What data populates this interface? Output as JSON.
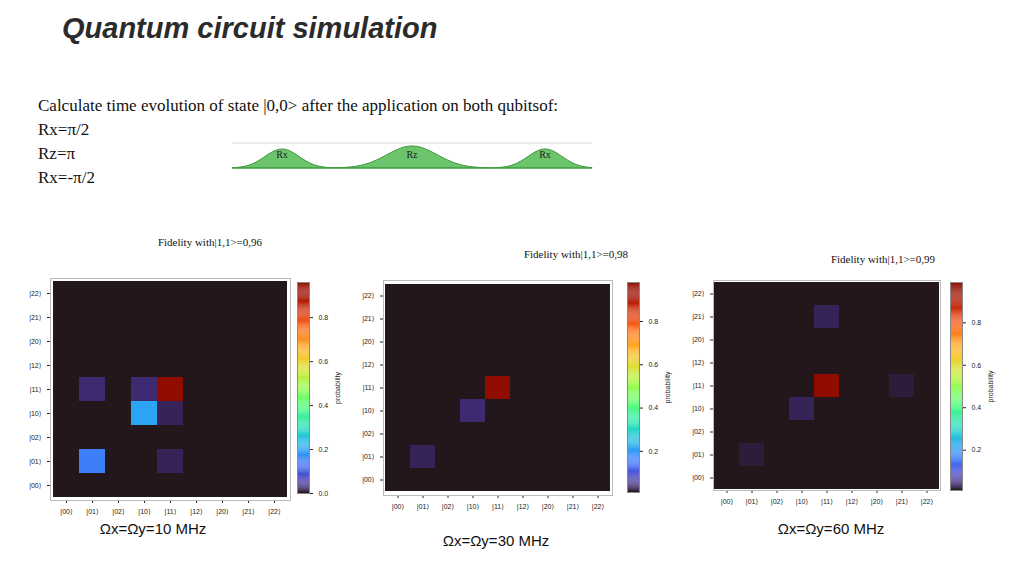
{
  "title": "Quantum circuit simulation",
  "text": {
    "intro": "Calculate time evolution of state |0,0> after the application on both qubitsof:",
    "lines": [
      "Rx=π/2",
      "Rz=π",
      "Rx=-π/2"
    ]
  },
  "pulse_labels": [
    "Rx",
    "Rz",
    "Rx"
  ],
  "chart_data": [
    {
      "type": "heatmap",
      "title": "Fidelity with|1,1>=0,96",
      "caption": "Ωx=Ωy=10 MHz",
      "color": "turbo",
      "categories": [
        "|00⟩",
        "|01⟩",
        "|02⟩",
        "|10⟩",
        "|11⟩",
        "|12⟩",
        "|20⟩",
        "|21⟩",
        "|22⟩"
      ],
      "cells": [
        [
          0,
          0,
          0,
          0,
          0,
          0,
          0,
          0,
          0
        ],
        [
          0,
          0.15,
          0,
          0,
          0.02,
          0,
          0,
          0,
          0
        ],
        [
          0,
          0,
          0,
          0,
          0,
          0,
          0,
          0,
          0
        ],
        [
          0,
          0,
          0,
          0.2,
          0.02,
          0,
          0,
          0,
          0
        ],
        [
          0,
          0.03,
          0,
          0.03,
          0.96,
          0,
          0,
          0,
          0
        ],
        [
          0,
          0,
          0,
          0,
          0,
          0,
          0,
          0,
          0
        ],
        [
          0,
          0,
          0,
          0,
          0,
          0,
          0,
          0,
          0
        ],
        [
          0,
          0,
          0,
          0,
          0,
          0,
          0,
          0,
          0
        ],
        [
          0,
          0,
          0,
          0,
          0,
          0,
          0,
          0,
          0
        ]
      ],
      "colorbar": {
        "label": "probability",
        "range": [
          0,
          0.96
        ],
        "ticks": [
          {
            "value": 0,
            "label": "0.0"
          },
          0.2,
          0.4,
          0.6,
          0.8
        ]
      }
    },
    {
      "type": "heatmap",
      "title": "Fidelity with|1,1>=0,98",
      "caption": "Ωx=Ωy=30 MHz",
      "color": "turbo",
      "categories": [
        "|00⟩",
        "|01⟩",
        "|02⟩",
        "|10⟩",
        "|11⟩",
        "|12⟩",
        "|20⟩",
        "|21⟩",
        "|22⟩"
      ],
      "cells": [
        [
          0,
          0,
          0,
          0,
          0,
          0,
          0,
          0,
          0
        ],
        [
          0,
          0.03,
          0,
          0,
          0,
          0,
          0,
          0,
          0
        ],
        [
          0,
          0,
          0,
          0,
          0,
          0,
          0,
          0,
          0
        ],
        [
          0,
          0,
          0,
          0.04,
          0,
          0,
          0,
          0,
          0
        ],
        [
          0,
          0,
          0,
          0,
          0.98,
          0,
          0,
          0,
          0
        ],
        [
          0,
          0,
          0,
          0,
          0,
          0,
          0,
          0,
          0
        ],
        [
          0,
          0,
          0,
          0,
          0,
          0,
          0,
          0,
          0
        ],
        [
          0,
          0,
          0,
          0,
          0,
          0,
          0,
          0,
          0
        ],
        [
          0,
          0,
          0,
          0,
          0,
          0,
          0,
          0,
          0
        ]
      ],
      "colorbar": {
        "label": "probability",
        "range": [
          0.01,
          0.98
        ],
        "ticks": [
          0.2,
          0.4,
          0.6,
          0.8
        ]
      }
    },
    {
      "type": "heatmap",
      "title": "Fidelity with|1,1>=0,99",
      "caption": "Ωx=Ωy=60 MHz",
      "color": "turbo",
      "categories": [
        "|00⟩",
        "|01⟩",
        "|02⟩",
        "|10⟩",
        "|11⟩",
        "|12⟩",
        "|20⟩",
        "|21⟩",
        "|22⟩"
      ],
      "cells": [
        [
          0,
          0,
          0,
          0,
          0,
          0,
          0,
          0,
          0
        ],
        [
          0,
          0.02,
          0,
          0,
          0,
          0,
          0,
          0,
          0
        ],
        [
          0,
          0,
          0,
          0,
          0,
          0,
          0,
          0,
          0
        ],
        [
          0,
          0,
          0,
          0.03,
          0,
          0,
          0,
          0,
          0
        ],
        [
          0,
          0,
          0,
          0,
          0.99,
          0.01,
          0,
          0.02,
          0
        ],
        [
          0,
          0,
          0,
          0,
          0,
          0,
          0,
          0,
          0
        ],
        [
          0,
          0,
          0,
          0,
          0,
          0,
          0,
          0,
          0
        ],
        [
          0,
          0,
          0,
          0,
          0.03,
          0,
          0,
          0,
          0
        ],
        [
          0,
          0,
          0,
          0,
          0,
          0,
          0,
          0,
          0
        ]
      ],
      "colorbar": {
        "label": "probability",
        "range": [
          0.01,
          0.99
        ],
        "ticks": [
          0.2,
          0.4,
          0.6,
          0.8
        ]
      }
    }
  ]
}
